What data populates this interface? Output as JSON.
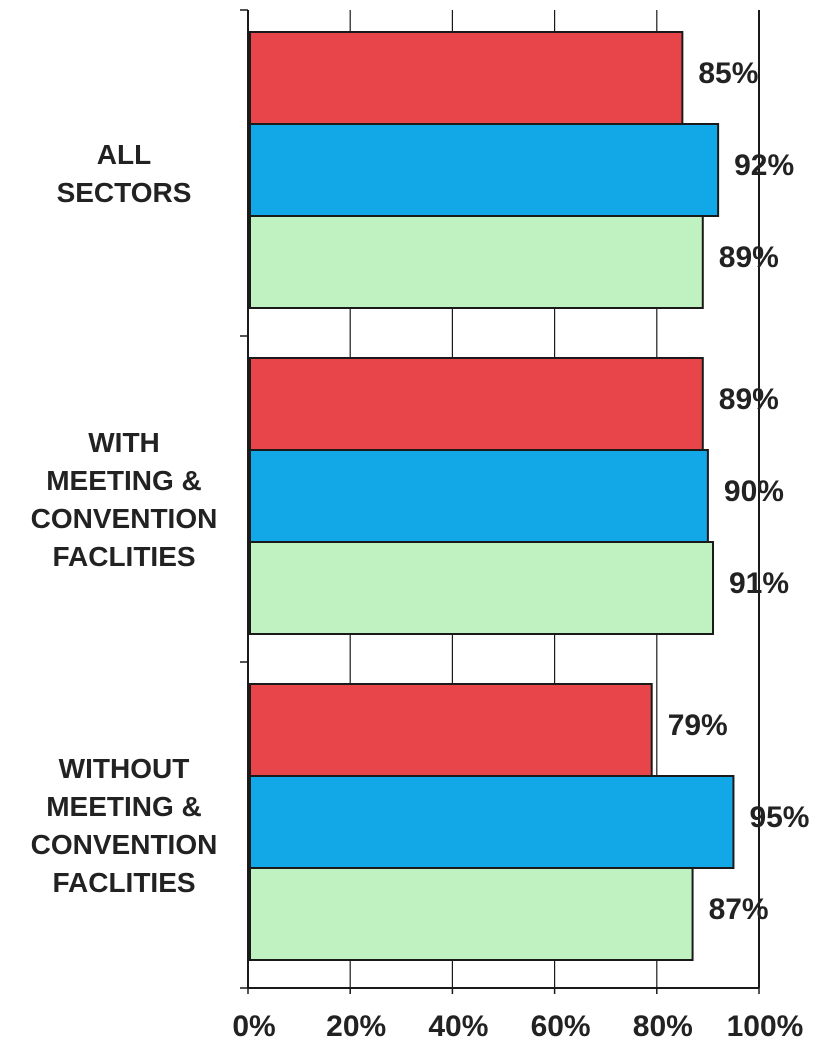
{
  "chart_data": {
    "type": "bar",
    "orientation": "horizontal",
    "categories": [
      [
        "ALL",
        "SECTORS"
      ],
      [
        "WITH",
        "MEETING &",
        "CONVENTION",
        "FACLITIES"
      ],
      [
        "WITHOUT",
        "MEETING &",
        "CONVENTION",
        "FACLITIES"
      ]
    ],
    "series": [
      {
        "values": [
          85,
          89,
          79
        ],
        "labels": [
          "85%",
          "89%",
          "79%"
        ],
        "color": "#e8454b"
      },
      {
        "values": [
          92,
          90,
          95
        ],
        "labels": [
          "92%",
          "90%",
          "95%"
        ],
        "color": "#12a7e6"
      },
      {
        "values": [
          89,
          91,
          87
        ],
        "labels": [
          "89%",
          "91%",
          "87%"
        ],
        "color": "#bff2c0"
      }
    ],
    "xlim": [
      0,
      100
    ],
    "xticks": [
      "0%",
      "20%",
      "40%",
      "60%",
      "80%",
      "100%"
    ],
    "grid": true,
    "title": "",
    "xlabel": "",
    "ylabel": ""
  }
}
